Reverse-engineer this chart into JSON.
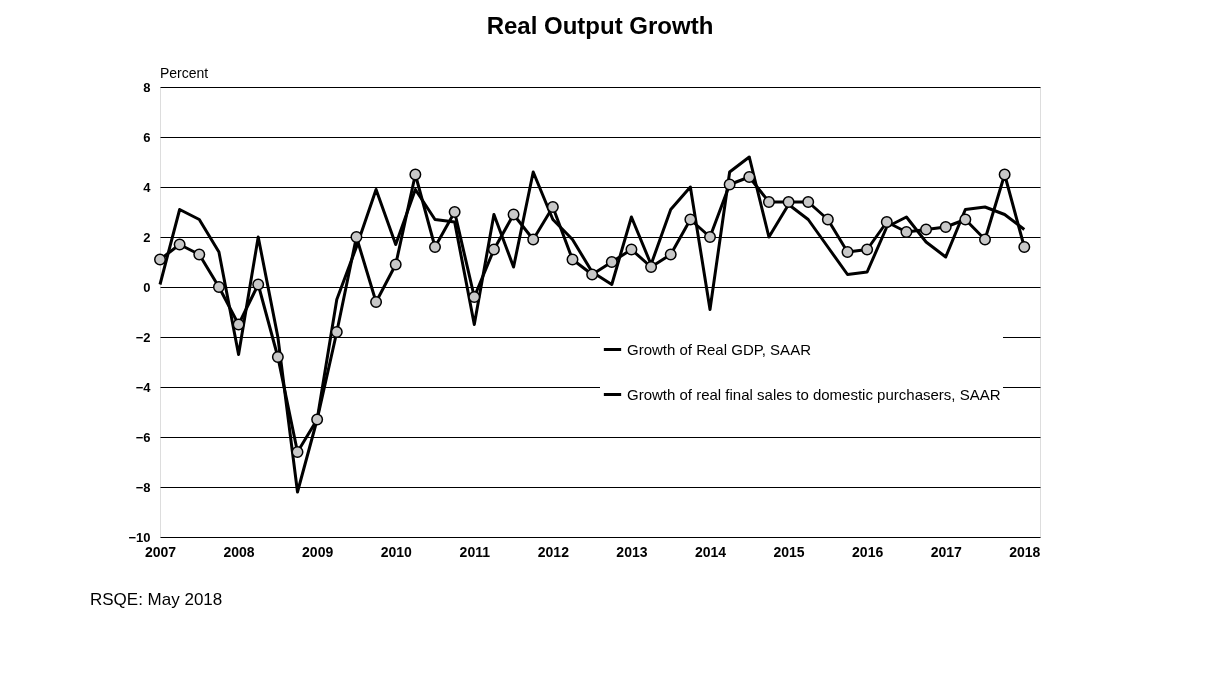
{
  "chart_data": {
    "type": "line",
    "title": "Real Output Growth",
    "ylabel": "Percent",
    "x": [
      2007,
      2007.25,
      2007.5,
      2007.75,
      2008,
      2008.25,
      2008.5,
      2008.75,
      2009,
      2009.25,
      2009.5,
      2009.75,
      2010,
      2010.25,
      2010.5,
      2010.75,
      2011,
      2011.25,
      2011.5,
      2011.75,
      2012,
      2012.25,
      2012.5,
      2012.75,
      2013,
      2013.25,
      2013.5,
      2013.75,
      2014,
      2014.25,
      2014.5,
      2014.75,
      2015,
      2015.25,
      2015.5,
      2015.75,
      2016,
      2016.25,
      2016.5,
      2016.75,
      2017,
      2017.25,
      2017.5,
      2017.75,
      2018
    ],
    "series": [
      {
        "name": "Growth of Real GDP, SAAR",
        "color": "#000000",
        "marker": "none",
        "values": [
          0.1,
          3.1,
          2.7,
          1.4,
          -2.7,
          2.0,
          -2.0,
          -8.2,
          -5.3,
          -0.5,
          1.6,
          3.9,
          1.7,
          3.9,
          2.7,
          2.6,
          -1.5,
          2.9,
          0.8,
          4.6,
          2.7,
          1.9,
          0.6,
          0.1,
          2.8,
          0.9,
          3.1,
          4.0,
          -0.9,
          4.6,
          5.2,
          2.0,
          3.3,
          2.7,
          1.6,
          0.5,
          0.6,
          2.4,
          2.8,
          1.8,
          1.2,
          3.1,
          3.2,
          2.9,
          2.3
        ]
      },
      {
        "name": "Growth of real final sales to domestic purchasers, SAAR",
        "color": "#000000",
        "marker": "circle",
        "values": [
          1.1,
          1.7,
          1.3,
          0.0,
          -1.5,
          0.1,
          -2.8,
          -6.6,
          -5.3,
          -1.8,
          2.0,
          -0.6,
          0.9,
          4.5,
          1.6,
          3.0,
          -0.4,
          1.5,
          2.9,
          1.9,
          3.2,
          1.1,
          0.5,
          1.0,
          1.5,
          0.8,
          1.3,
          2.7,
          2.0,
          4.1,
          4.4,
          3.4,
          3.4,
          3.4,
          2.7,
          1.4,
          1.5,
          2.6,
          2.2,
          2.3,
          2.4,
          2.7,
          1.9,
          4.5,
          1.6
        ]
      }
    ],
    "xlim": [
      2007,
      2018.2
    ],
    "xticks": [
      2007,
      2008,
      2009,
      2010,
      2011,
      2012,
      2013,
      2014,
      2015,
      2016,
      2017,
      2018
    ],
    "ylim": [
      -10,
      8
    ],
    "yticks": [
      -10,
      -8,
      -6,
      -4,
      -2,
      0,
      2,
      4,
      6,
      8
    ],
    "grid": "y",
    "legend": "bottom right",
    "annotations": [
      "RSQE: May 2018"
    ]
  }
}
